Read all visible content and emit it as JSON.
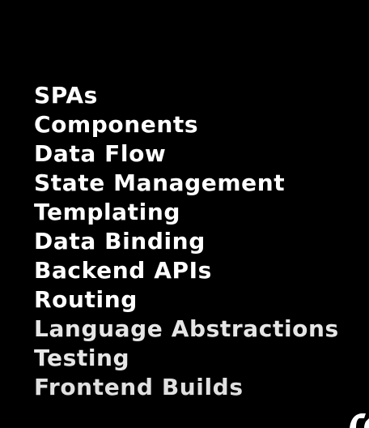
{
  "topics": [
    {
      "label": "SPAs",
      "color": "#ffffff"
    },
    {
      "label": "Components",
      "color": "#ffffff"
    },
    {
      "label": "Data Flow",
      "color": "#ffffff"
    },
    {
      "label": "State Management",
      "color": "#ffffff"
    },
    {
      "label": "Templating",
      "color": "#ffffff"
    },
    {
      "label": "Data Binding",
      "color": "#ffffff"
    },
    {
      "label": "Backend APIs",
      "color": "#ffffff"
    },
    {
      "label": "Routing",
      "color": "#ffffff"
    },
    {
      "label": "Language Abstractions",
      "color": "#e6e6e6"
    },
    {
      "label": "Testing",
      "color": "#e6e6e6"
    },
    {
      "label": "Frontend Builds",
      "color": "#e0e0e0"
    }
  ],
  "colors": {
    "background": "#000000",
    "text": "#ffffff"
  }
}
